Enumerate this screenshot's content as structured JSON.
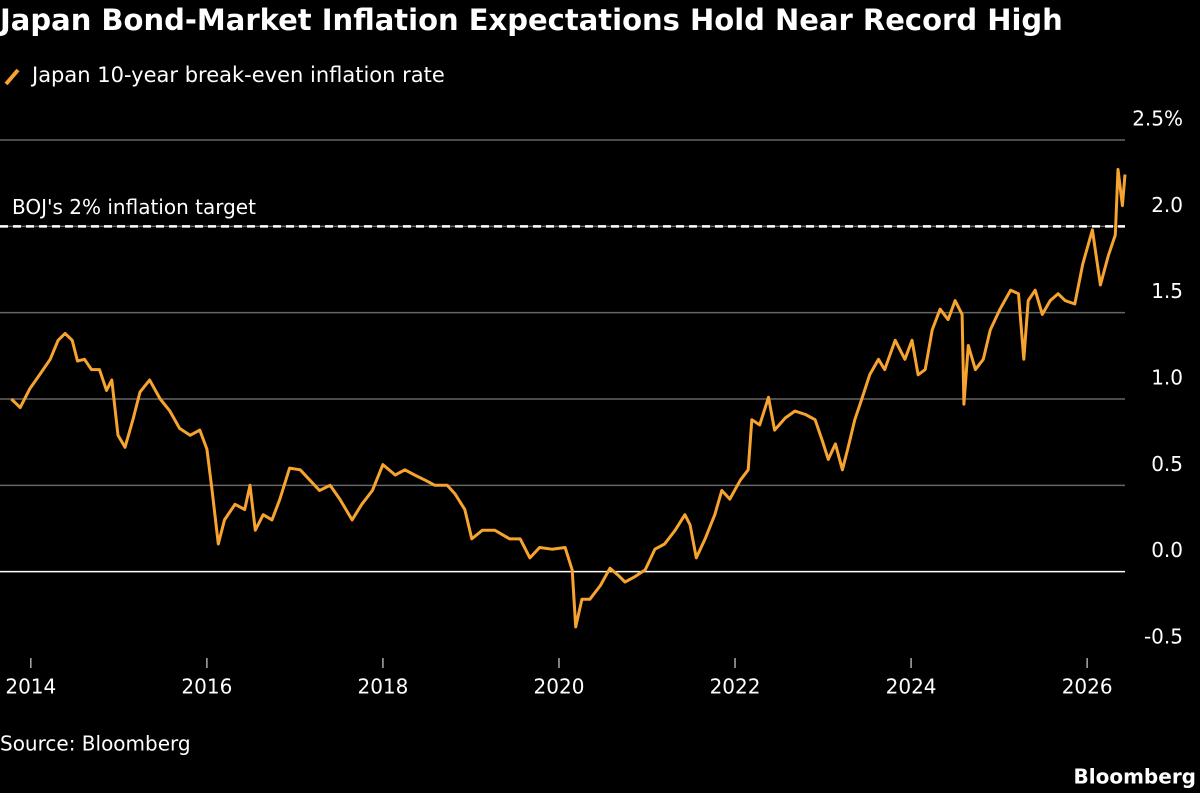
{
  "chart_data": {
    "type": "line",
    "title": "Japan Bond-Market Inflation Expectations Hold Near Record High",
    "source": "Source: Bloomberg",
    "brand": "Bloomberg",
    "annotation": {
      "label": "BOJ's 2% inflation target",
      "value": 2
    },
    "xlim": [
      2013.65,
      2026.43
    ],
    "xticks": [
      2014,
      2016,
      2018,
      2020,
      2022,
      2024,
      2026
    ],
    "ylim": [
      -0.5,
      2.5
    ],
    "yticks": [
      {
        "value": 2.5,
        "label": "2.5%"
      },
      {
        "value": 2,
        "label": "2.0"
      },
      {
        "value": 1.5,
        "label": "1.5"
      },
      {
        "value": 1,
        "label": "1.0"
      },
      {
        "value": 0.5,
        "label": "0.5"
      },
      {
        "value": 0,
        "label": "0.0"
      },
      {
        "value": -0.5,
        "label": "-0.5"
      }
    ],
    "grid": true,
    "x": [
      2013.78,
      2013.88,
      2013.99,
      2014.1,
      2014.22,
      2014.31,
      2014.39,
      2014.47,
      2014.53,
      2014.61,
      2014.69,
      2014.78,
      2014.86,
      2014.92,
      2014.99,
      2015.07,
      2015.16,
      2015.24,
      2015.35,
      2015.47,
      2015.58,
      2015.69,
      2015.81,
      2015.92,
      2016.0,
      2016.06,
      2016.13,
      2016.2,
      2016.32,
      2016.43,
      2016.49,
      2016.55,
      2016.64,
      2016.74,
      2016.83,
      2016.94,
      2017.06,
      2017.17,
      2017.28,
      2017.4,
      2017.51,
      2017.65,
      2017.76,
      2017.88,
      2018.0,
      2018.14,
      2018.25,
      2018.36,
      2018.48,
      2018.59,
      2018.73,
      2018.82,
      2018.93,
      2019.01,
      2019.13,
      2019.27,
      2019.44,
      2019.56,
      2019.67,
      2019.78,
      2019.92,
      2020.07,
      2020.15,
      2020.19,
      2020.26,
      2020.35,
      2020.47,
      2020.58,
      2020.67,
      2020.75,
      2020.86,
      2020.98,
      2021.09,
      2021.2,
      2021.32,
      2021.43,
      2021.49,
      2021.56,
      2021.66,
      2021.77,
      2021.85,
      2021.94,
      2022.06,
      2022.15,
      2022.19,
      2022.28,
      2022.38,
      2022.45,
      2022.57,
      2022.68,
      2022.8,
      2022.91,
      2022.99,
      2023.06,
      2023.14,
      2023.22,
      2023.28,
      2023.36,
      2023.44,
      2023.53,
      2023.63,
      2023.7,
      2023.82,
      2023.93,
      2024.01,
      2024.08,
      2024.16,
      2024.24,
      2024.33,
      2024.42,
      2024.5,
      2024.58,
      2024.6,
      2024.65,
      2024.73,
      2024.82,
      2024.9,
      2025.01,
      2025.13,
      2025.22,
      2025.28,
      2025.33,
      2025.41,
      2025.49,
      2025.58,
      2025.67,
      2025.75,
      2025.86,
      2025.95,
      2026.06,
      2026.15,
      2026.24,
      2026.32,
      2026.35,
      2026.4,
      2026.43
    ],
    "series": [
      {
        "name": "Japan 10-year break-even inflation rate",
        "color": "#f6a32f",
        "values": [
          1.0,
          0.95,
          1.06,
          1.14,
          1.23,
          1.34,
          1.38,
          1.34,
          1.22,
          1.23,
          1.17,
          1.17,
          1.05,
          1.11,
          0.79,
          0.72,
          0.88,
          1.04,
          1.11,
          1.0,
          0.93,
          0.83,
          0.79,
          0.82,
          0.71,
          0.47,
          0.16,
          0.3,
          0.39,
          0.36,
          0.5,
          0.24,
          0.33,
          0.3,
          0.42,
          0.6,
          0.59,
          0.53,
          0.47,
          0.5,
          0.42,
          0.3,
          0.39,
          0.47,
          0.62,
          0.56,
          0.59,
          0.56,
          0.53,
          0.5,
          0.5,
          0.45,
          0.36,
          0.19,
          0.24,
          0.24,
          0.19,
          0.19,
          0.08,
          0.14,
          0.13,
          0.14,
          0.01,
          -0.32,
          -0.16,
          -0.16,
          -0.08,
          0.02,
          -0.02,
          -0.06,
          -0.03,
          0.01,
          0.13,
          0.16,
          0.24,
          0.33,
          0.27,
          0.08,
          0.19,
          0.33,
          0.47,
          0.42,
          0.53,
          0.59,
          0.88,
          0.85,
          1.01,
          0.82,
          0.89,
          0.93,
          0.91,
          0.88,
          0.76,
          0.65,
          0.74,
          0.59,
          0.71,
          0.88,
          1.0,
          1.14,
          1.23,
          1.17,
          1.34,
          1.23,
          1.34,
          1.14,
          1.17,
          1.4,
          1.52,
          1.46,
          1.57,
          1.49,
          0.97,
          1.31,
          1.17,
          1.23,
          1.4,
          1.52,
          1.63,
          1.61,
          1.23,
          1.57,
          1.63,
          1.49,
          1.57,
          1.61,
          1.57,
          1.55,
          1.78,
          1.98,
          1.66,
          1.83,
          1.95,
          2.33,
          2.12,
          2.3
        ]
      }
    ]
  }
}
